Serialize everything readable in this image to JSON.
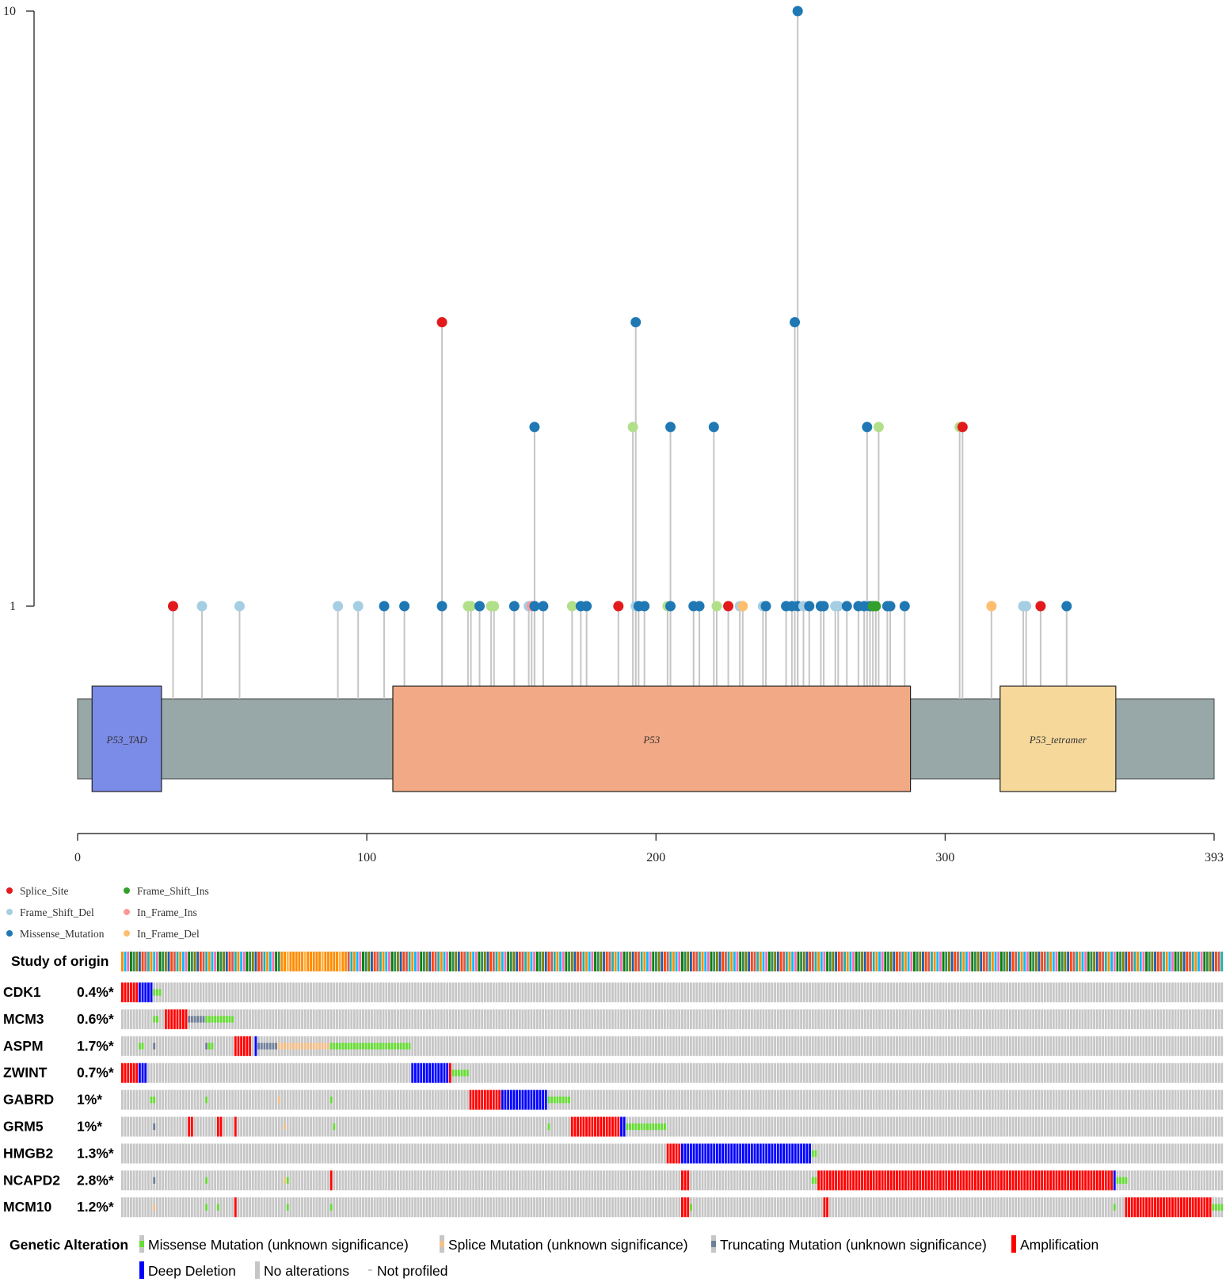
{
  "lollipop": {
    "type": "lollipop",
    "y_ticks": [
      "1",
      "10"
    ],
    "x_ticks": [
      "0",
      "100",
      "200",
      "300",
      "393"
    ],
    "x_range": [
      0,
      393
    ],
    "domains": [
      {
        "label": "P53_TAD",
        "start": 5,
        "end": 29,
        "color": "#7b8be8"
      },
      {
        "label": "P53",
        "start": 109,
        "end": 288,
        "color": "#f2a985"
      },
      {
        "label": "P53_tetramer",
        "start": 319,
        "end": 359,
        "color": "#f6d89b"
      }
    ],
    "colors": {
      "Splice_Site": "#e31a1c",
      "Frame_Shift_Del": "#a6cee3",
      "Missense_Mutation": "#1f78b4",
      "Frame_Shift_Ins": "#33a02c",
      "In_Frame_Ins": "#fb9a99",
      "In_Frame_Del": "#fdbf6f",
      "Nonsense_like": "#b2df8a",
      "backbone": "#98a8a8",
      "stem": "#c6c6c6"
    },
    "legend": [
      {
        "label": "Splice_Site",
        "key": "Splice_Site"
      },
      {
        "label": "Frame_Shift_Del",
        "key": "Frame_Shift_Del"
      },
      {
        "label": "Missense_Mutation",
        "key": "Missense_Mutation"
      },
      {
        "label": "Frame_Shift_Ins",
        "key": "Frame_Shift_Ins"
      },
      {
        "label": "In_Frame_Ins",
        "key": "In_Frame_Ins"
      },
      {
        "label": "In_Frame_Del",
        "key": "In_Frame_Del"
      }
    ],
    "mutations": [
      {
        "pos": 33,
        "count": 1,
        "type": "Splice_Site"
      },
      {
        "pos": 43,
        "count": 1,
        "type": "Frame_Shift_Del"
      },
      {
        "pos": 56,
        "count": 1,
        "type": "Frame_Shift_Del"
      },
      {
        "pos": 90,
        "count": 1,
        "type": "Frame_Shift_Del"
      },
      {
        "pos": 97,
        "count": 1,
        "type": "Frame_Shift_Del"
      },
      {
        "pos": 106,
        "count": 1,
        "type": "Missense_Mutation"
      },
      {
        "pos": 113,
        "count": 1,
        "type": "Missense_Mutation"
      },
      {
        "pos": 126,
        "count": 1,
        "type": "Missense_Mutation"
      },
      {
        "pos": 126,
        "count": 3,
        "type": "Splice_Site"
      },
      {
        "pos": 135,
        "count": 1,
        "type": "Nonsense_like"
      },
      {
        "pos": 136,
        "count": 1,
        "type": "Nonsense_like"
      },
      {
        "pos": 139,
        "count": 1,
        "type": "Missense_Mutation"
      },
      {
        "pos": 143,
        "count": 1,
        "type": "Nonsense_like"
      },
      {
        "pos": 144,
        "count": 1,
        "type": "Nonsense_like"
      },
      {
        "pos": 151,
        "count": 1,
        "type": "Missense_Mutation"
      },
      {
        "pos": 156,
        "count": 1,
        "type": "Frame_Shift_Del"
      },
      {
        "pos": 157,
        "count": 1,
        "type": "In_Frame_Ins"
      },
      {
        "pos": 158,
        "count": 1,
        "type": "Missense_Mutation"
      },
      {
        "pos": 158,
        "count": 2,
        "type": "Missense_Mutation"
      },
      {
        "pos": 161,
        "count": 1,
        "type": "Missense_Mutation"
      },
      {
        "pos": 171,
        "count": 1,
        "type": "Nonsense_like"
      },
      {
        "pos": 174,
        "count": 1,
        "type": "Missense_Mutation"
      },
      {
        "pos": 176,
        "count": 1,
        "type": "Missense_Mutation"
      },
      {
        "pos": 187,
        "count": 1,
        "type": "Splice_Site"
      },
      {
        "pos": 192,
        "count": 2,
        "type": "Nonsense_like"
      },
      {
        "pos": 193,
        "count": 1,
        "type": "Frame_Shift_Del"
      },
      {
        "pos": 193,
        "count": 3,
        "type": "Missense_Mutation"
      },
      {
        "pos": 194,
        "count": 1,
        "type": "Missense_Mutation"
      },
      {
        "pos": 196,
        "count": 1,
        "type": "Missense_Mutation"
      },
      {
        "pos": 204,
        "count": 1,
        "type": "Nonsense_like"
      },
      {
        "pos": 205,
        "count": 1,
        "type": "Missense_Mutation"
      },
      {
        "pos": 205,
        "count": 2,
        "type": "Missense_Mutation"
      },
      {
        "pos": 213,
        "count": 1,
        "type": "Missense_Mutation"
      },
      {
        "pos": 215,
        "count": 1,
        "type": "Missense_Mutation"
      },
      {
        "pos": 220,
        "count": 2,
        "type": "Missense_Mutation"
      },
      {
        "pos": 221,
        "count": 1,
        "type": "Nonsense_like"
      },
      {
        "pos": 225,
        "count": 1,
        "type": "Splice_Site"
      },
      {
        "pos": 229,
        "count": 1,
        "type": "Frame_Shift_Del"
      },
      {
        "pos": 230,
        "count": 1,
        "type": "In_Frame_Del"
      },
      {
        "pos": 237,
        "count": 1,
        "type": "Frame_Shift_Del"
      },
      {
        "pos": 238,
        "count": 1,
        "type": "Missense_Mutation"
      },
      {
        "pos": 245,
        "count": 1,
        "type": "Missense_Mutation"
      },
      {
        "pos": 247,
        "count": 1,
        "type": "Missense_Mutation"
      },
      {
        "pos": 248,
        "count": 3,
        "type": "Missense_Mutation"
      },
      {
        "pos": 249,
        "count": 10,
        "type": "Missense_Mutation"
      },
      {
        "pos": 249,
        "count": 1,
        "type": "Missense_Mutation"
      },
      {
        "pos": 251,
        "count": 1,
        "type": "Frame_Shift_Del"
      },
      {
        "pos": 253,
        "count": 1,
        "type": "Missense_Mutation"
      },
      {
        "pos": 257,
        "count": 1,
        "type": "Missense_Mutation"
      },
      {
        "pos": 258,
        "count": 1,
        "type": "Missense_Mutation"
      },
      {
        "pos": 262,
        "count": 1,
        "type": "Frame_Shift_Del"
      },
      {
        "pos": 263,
        "count": 1,
        "type": "Frame_Shift_Del"
      },
      {
        "pos": 266,
        "count": 1,
        "type": "Missense_Mutation"
      },
      {
        "pos": 270,
        "count": 1,
        "type": "Missense_Mutation"
      },
      {
        "pos": 272,
        "count": 1,
        "type": "Missense_Mutation"
      },
      {
        "pos": 273,
        "count": 2,
        "type": "Missense_Mutation"
      },
      {
        "pos": 274,
        "count": 1,
        "type": "Missense_Mutation"
      },
      {
        "pos": 275,
        "count": 1,
        "type": "Frame_Shift_Ins"
      },
      {
        "pos": 276,
        "count": 1,
        "type": "Frame_Shift_Ins"
      },
      {
        "pos": 277,
        "count": 2,
        "type": "Nonsense_like"
      },
      {
        "pos": 280,
        "count": 1,
        "type": "Missense_Mutation"
      },
      {
        "pos": 281,
        "count": 1,
        "type": "Missense_Mutation"
      },
      {
        "pos": 286,
        "count": 1,
        "type": "Missense_Mutation"
      },
      {
        "pos": 305,
        "count": 2,
        "type": "Nonsense_like"
      },
      {
        "pos": 306,
        "count": 2,
        "type": "Splice_Site"
      },
      {
        "pos": 316,
        "count": 1,
        "type": "In_Frame_Del"
      },
      {
        "pos": 327,
        "count": 1,
        "type": "Frame_Shift_Del"
      },
      {
        "pos": 328,
        "count": 1,
        "type": "Frame_Shift_Del"
      },
      {
        "pos": 333,
        "count": 1,
        "type": "Splice_Site"
      },
      {
        "pos": 342,
        "count": 1,
        "type": "Missense_Mutation"
      }
    ]
  },
  "oncoprint": {
    "num_samples": 380,
    "genes": [
      {
        "name": "CDK1",
        "pct": "0.4%*",
        "events": [
          {
            "s": 0,
            "e": 6,
            "t": "amp"
          },
          {
            "s": 6,
            "e": 11,
            "t": "del"
          },
          {
            "s": 11,
            "e": 14,
            "t": "mis"
          }
        ]
      },
      {
        "name": "MCM3",
        "pct": "0.6%*",
        "events": [
          {
            "s": 11,
            "e": 13,
            "t": "mis"
          },
          {
            "s": 15,
            "e": 23,
            "t": "amp"
          },
          {
            "s": 23,
            "e": 29,
            "t": "trunc"
          },
          {
            "s": 29,
            "e": 39,
            "t": "mis"
          }
        ]
      },
      {
        "name": "ASPM",
        "pct": "1.7%*",
        "events": [
          {
            "s": 6,
            "e": 8,
            "t": "mis"
          },
          {
            "s": 11,
            "e": 12,
            "t": "trunc"
          },
          {
            "s": 29,
            "e": 30,
            "t": "trunc"
          },
          {
            "s": 30,
            "e": 32,
            "t": "mis"
          },
          {
            "s": 39,
            "e": 45,
            "t": "amp"
          },
          {
            "s": 46,
            "e": 47,
            "t": "del"
          },
          {
            "s": 47,
            "e": 54,
            "t": "trunc"
          },
          {
            "s": 54,
            "e": 72,
            "t": "splice"
          },
          {
            "s": 72,
            "e": 100,
            "t": "mis"
          }
        ]
      },
      {
        "name": "ZWINT",
        "pct": "0.7%*",
        "events": [
          {
            "s": 0,
            "e": 6,
            "t": "amp"
          },
          {
            "s": 6,
            "e": 9,
            "t": "del"
          },
          {
            "s": 100,
            "e": 113,
            "t": "del"
          },
          {
            "s": 113,
            "e": 114,
            "t": "amp"
          },
          {
            "s": 114,
            "e": 120,
            "t": "mis"
          }
        ]
      },
      {
        "name": "GABRD",
        "pct": "1%*",
        "events": [
          {
            "s": 10,
            "e": 12,
            "t": "mis"
          },
          {
            "s": 29,
            "e": 30,
            "t": "mis"
          },
          {
            "s": 54,
            "e": 55,
            "t": "splice"
          },
          {
            "s": 72,
            "e": 73,
            "t": "mis"
          },
          {
            "s": 120,
            "e": 131,
            "t": "amp"
          },
          {
            "s": 131,
            "e": 147,
            "t": "del"
          },
          {
            "s": 147,
            "e": 155,
            "t": "mis"
          }
        ]
      },
      {
        "name": "GRM5",
        "pct": "1%*",
        "events": [
          {
            "s": 11,
            "e": 12,
            "t": "trunc"
          },
          {
            "s": 23,
            "e": 25,
            "t": "amp"
          },
          {
            "s": 33,
            "e": 35,
            "t": "amp"
          },
          {
            "s": 39,
            "e": 40,
            "t": "amp"
          },
          {
            "s": 56,
            "e": 57,
            "t": "splice"
          },
          {
            "s": 73,
            "e": 74,
            "t": "mis"
          },
          {
            "s": 147,
            "e": 148,
            "t": "mis"
          },
          {
            "s": 155,
            "e": 172,
            "t": "amp"
          },
          {
            "s": 172,
            "e": 174,
            "t": "del"
          },
          {
            "s": 174,
            "e": 188,
            "t": "mis"
          }
        ]
      },
      {
        "name": "HMGB2",
        "pct": "1.3%*",
        "events": [
          {
            "s": 188,
            "e": 193,
            "t": "amp"
          },
          {
            "s": 193,
            "e": 238,
            "t": "del"
          },
          {
            "s": 238,
            "e": 240,
            "t": "mis"
          }
        ]
      },
      {
        "name": "NCAPD2",
        "pct": "2.8%*",
        "events": [
          {
            "s": 11,
            "e": 12,
            "t": "trunc"
          },
          {
            "s": 29,
            "e": 30,
            "t": "mis"
          },
          {
            "s": 56,
            "e": 57,
            "t": "splice"
          },
          {
            "s": 57,
            "e": 58,
            "t": "mis"
          },
          {
            "s": 72,
            "e": 73,
            "t": "amp"
          },
          {
            "s": 193,
            "e": 196,
            "t": "amp"
          },
          {
            "s": 238,
            "e": 240,
            "t": "mis"
          },
          {
            "s": 240,
            "e": 243,
            "t": "amp"
          },
          {
            "s": 243,
            "e": 342,
            "t": "amp"
          },
          {
            "s": 342,
            "e": 343,
            "t": "del"
          },
          {
            "s": 343,
            "e": 347,
            "t": "mis"
          }
        ]
      },
      {
        "name": "MCM10",
        "pct": "1.2%*",
        "events": [
          {
            "s": 11,
            "e": 12,
            "t": "splice"
          },
          {
            "s": 29,
            "e": 30,
            "t": "mis"
          },
          {
            "s": 33,
            "e": 34,
            "t": "mis"
          },
          {
            "s": 39,
            "e": 40,
            "t": "amp"
          },
          {
            "s": 57,
            "e": 58,
            "t": "mis"
          },
          {
            "s": 72,
            "e": 73,
            "t": "mis"
          },
          {
            "s": 193,
            "e": 196,
            "t": "amp"
          },
          {
            "s": 196,
            "e": 197,
            "t": "mis"
          },
          {
            "s": 242,
            "e": 244,
            "t": "amp"
          },
          {
            "s": 342,
            "e": 343,
            "t": "mis"
          },
          {
            "s": 346,
            "e": 376,
            "t": "amp"
          },
          {
            "s": 376,
            "e": 380,
            "t": "mis"
          }
        ]
      }
    ],
    "study_row_label": "Study of origin",
    "study_colors": [
      "#ff8c00",
      "#8a2be2",
      "#008000",
      "#1e5fb4",
      "#dc143c",
      "#20b2aa",
      "#ff69b4",
      "#808000",
      "#9932cc",
      "#cd5c5c",
      "#00bfff",
      "#b8860b",
      "#2e8b57",
      "#ff4500"
    ],
    "study_orange_block": {
      "s": 55,
      "e": 78
    },
    "alteration_colors": {
      "mis": "#66dd33",
      "splice": "#f4c08a",
      "trunc": "#6e7f99",
      "amp": "#ff0000",
      "del": "#0000ff",
      "none": "#c6c6c6"
    },
    "legend_title": "Genetic Alteration",
    "legend": [
      {
        "label": "Missense Mutation (unknown significance)",
        "key": "mis"
      },
      {
        "label": "Splice Mutation (unknown significance)",
        "key": "splice"
      },
      {
        "label": "Truncating Mutation (unknown significance)",
        "key": "trunc"
      },
      {
        "label": "Amplification",
        "key": "amp"
      },
      {
        "label": "Deep Deletion",
        "key": "del"
      },
      {
        "label": "No alterations",
        "key": "none"
      },
      {
        "label": "Not profiled",
        "key": "np"
      }
    ]
  }
}
